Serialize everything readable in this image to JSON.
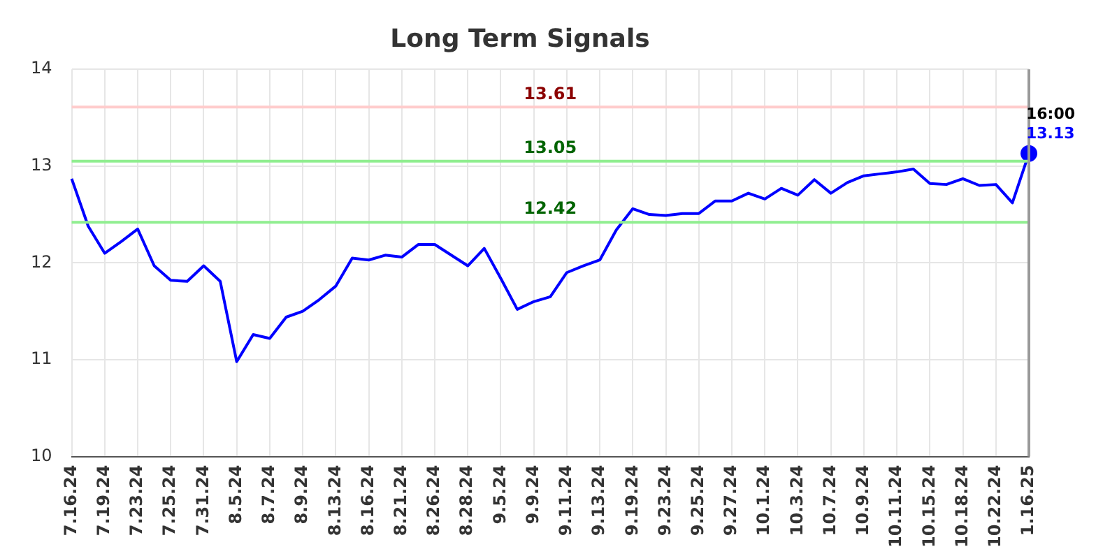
{
  "chart_data": {
    "type": "line",
    "title": "Long Term Signals",
    "categories": [
      "7.16.24",
      null,
      "7.19.24",
      null,
      "7.23.24",
      null,
      "7.25.24",
      null,
      "7.31.24",
      null,
      "8.5.24",
      null,
      "8.7.24",
      null,
      "8.9.24",
      null,
      "8.13.24",
      null,
      "8.16.24",
      null,
      "8.21.24",
      null,
      "8.26.24",
      null,
      "8.28.24",
      null,
      "9.5.24",
      null,
      "9.9.24",
      null,
      "9.11.24",
      null,
      "9.13.24",
      null,
      "9.19.24",
      null,
      "9.23.24",
      null,
      "9.25.24",
      null,
      "9.27.24",
      null,
      "10.1.24",
      null,
      "10.3.24",
      null,
      "10.7.24",
      null,
      "10.9.24",
      null,
      "10.11.24",
      null,
      "10.15.24",
      null,
      "10.18.24",
      null,
      "10.22.24",
      null,
      "1.16.25"
    ],
    "series": [
      {
        "color": "#0000ff",
        "values": [
          12.87,
          12.38,
          12.1,
          12.22,
          12.35,
          11.97,
          11.82,
          11.81,
          11.97,
          11.81,
          10.98,
          11.26,
          11.22,
          11.44,
          11.5,
          11.62,
          11.76,
          12.05,
          12.03,
          12.08,
          12.06,
          12.19,
          12.19,
          12.08,
          11.97,
          12.15,
          11.84,
          11.52,
          11.6,
          11.65,
          11.9,
          11.97,
          12.03,
          12.34,
          12.56,
          12.5,
          12.49,
          12.51,
          12.51,
          12.64,
          12.64,
          12.72,
          12.66,
          12.77,
          12.7,
          12.86,
          12.72,
          12.83,
          12.9,
          12.92,
          12.94,
          12.97,
          12.82,
          12.81,
          12.87,
          12.8,
          12.81,
          12.62,
          13.13
        ],
        "value_labels": [
          null,
          null,
          null,
          null,
          null,
          null,
          null,
          null,
          null,
          null,
          null,
          null,
          null,
          null,
          null,
          null,
          null,
          null,
          null,
          null,
          null,
          null,
          null,
          null,
          null,
          null,
          null,
          null,
          null,
          null,
          null,
          null,
          null,
          null,
          null,
          null,
          null,
          null,
          null,
          null,
          null,
          null,
          null,
          null,
          null,
          null,
          null,
          null,
          null,
          null,
          null,
          null,
          null,
          null,
          null,
          null,
          null,
          null,
          "13.13"
        ]
      }
    ],
    "ylim": [
      10,
      14
    ],
    "yticks": [
      10,
      11,
      12,
      13,
      14
    ],
    "grid": true,
    "legend": false,
    "marker": "none",
    "line_style": "solid",
    "ref_lines": [
      {
        "axis": "y",
        "value": 13.61,
        "label": "13.61",
        "color": "#ffcccc"
      },
      {
        "axis": "y",
        "value": 13.05,
        "label": "13.05",
        "color": "#90ee90"
      },
      {
        "axis": "y",
        "value": 12.42,
        "label": "12.42",
        "color": "#90ee90"
      },
      {
        "axis": "x",
        "value": "1.16.25",
        "color": "#999999"
      }
    ],
    "annotations": [
      {
        "text": "16:00",
        "x": "1.16.25",
        "y": 13.13
      }
    ]
  }
}
